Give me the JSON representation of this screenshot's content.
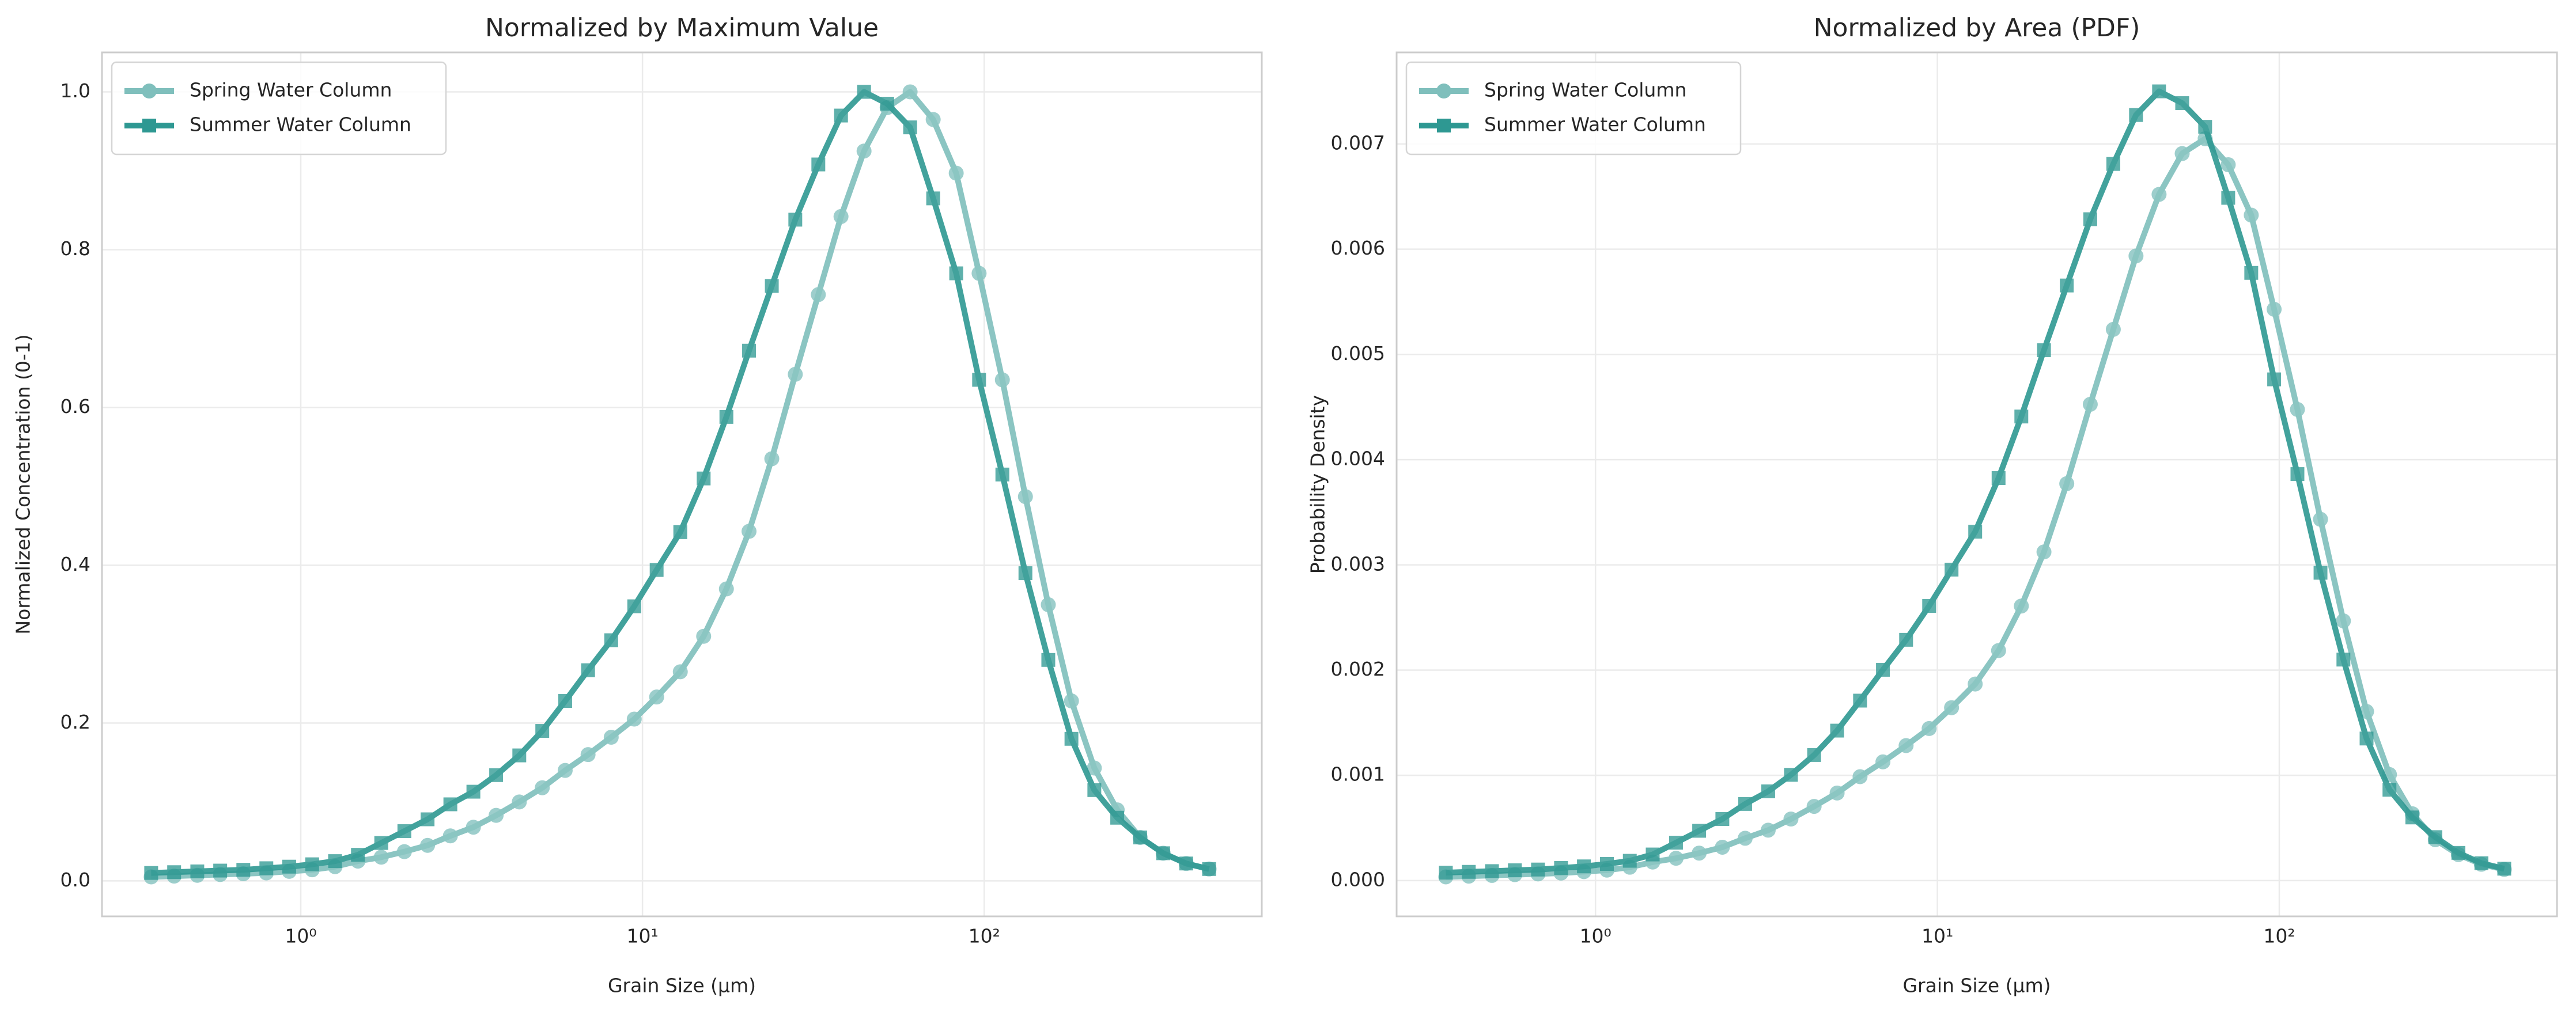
{
  "chart_data": [
    {
      "type": "line",
      "title": "Normalized by Maximum Value",
      "xlabel": "Grain Size (µm)",
      "ylabel": "Normalized Concentration (0-1)",
      "xscale": "log",
      "grid": true,
      "legend": "upper left",
      "x": [
        0.365,
        0.426,
        0.498,
        0.581,
        0.679,
        0.793,
        0.925,
        1.08,
        1.26,
        1.47,
        1.72,
        2.01,
        2.35,
        2.74,
        3.2,
        3.73,
        4.36,
        5.09,
        5.94,
        6.93,
        8.1,
        9.46,
        11,
        12.9,
        15.1,
        17.6,
        20.5,
        23.9,
        28,
        32.7,
        38.1,
        44.5,
        52,
        60.7,
        70.9,
        82.8,
        96.6,
        113,
        132,
        154,
        180,
        210,
        245,
        286,
        334,
        390,
        455
      ],
      "xlim": [
        0.262,
        649
      ],
      "xticks": [
        {
          "value": 1,
          "label": "10⁰"
        },
        {
          "value": 10,
          "label": "10¹"
        },
        {
          "value": 100,
          "label": "10²"
        }
      ],
      "ylim": [
        -0.045,
        1.05
      ],
      "yticks": [
        {
          "value": 0,
          "label": "0.0"
        },
        {
          "value": 0.2,
          "label": "0.2"
        },
        {
          "value": 0.4,
          "label": "0.4"
        },
        {
          "value": 0.6,
          "label": "0.6"
        },
        {
          "value": 0.8,
          "label": "0.8"
        },
        {
          "value": 1,
          "label": "1.0"
        }
      ],
      "series": [
        {
          "name": "Spring Water Column",
          "color": "#7fbfbc",
          "marker": "circle",
          "values": [
            0.005,
            0.006,
            0.007,
            0.008,
            0.009,
            0.01,
            0.012,
            0.014,
            0.018,
            0.025,
            0.03,
            0.037,
            0.045,
            0.057,
            0.068,
            0.083,
            0.1,
            0.118,
            0.14,
            0.16,
            0.182,
            0.205,
            0.233,
            0.265,
            0.31,
            0.37,
            0.443,
            0.535,
            0.642,
            0.743,
            0.842,
            0.925,
            0.98,
            1.0,
            0.965,
            0.897,
            0.77,
            0.635,
            0.487,
            0.35,
            0.228,
            0.143,
            0.09,
            0.055,
            0.035,
            0.022,
            0.015
          ]
        },
        {
          "name": "Summer Water Column",
          "color": "#2e9892",
          "marker": "square",
          "values": [
            0.01,
            0.011,
            0.012,
            0.013,
            0.014,
            0.016,
            0.018,
            0.021,
            0.025,
            0.033,
            0.048,
            0.063,
            0.078,
            0.097,
            0.113,
            0.134,
            0.159,
            0.19,
            0.228,
            0.267,
            0.305,
            0.348,
            0.394,
            0.442,
            0.51,
            0.588,
            0.672,
            0.754,
            0.838,
            0.908,
            0.97,
            1.0,
            0.985,
            0.955,
            0.865,
            0.77,
            0.635,
            0.515,
            0.39,
            0.28,
            0.18,
            0.115,
            0.08,
            0.055,
            0.035,
            0.022,
            0.015
          ]
        }
      ]
    },
    {
      "type": "line",
      "title": "Normalized by Area (PDF)",
      "xlabel": "Grain Size (µm)",
      "ylabel": "Probability Density",
      "xscale": "log",
      "grid": true,
      "legend": "upper left",
      "x": [
        0.365,
        0.426,
        0.498,
        0.581,
        0.679,
        0.793,
        0.925,
        1.08,
        1.26,
        1.47,
        1.72,
        2.01,
        2.35,
        2.74,
        3.2,
        3.73,
        4.36,
        5.09,
        5.94,
        6.93,
        8.1,
        9.46,
        11,
        12.9,
        15.1,
        17.6,
        20.5,
        23.9,
        28,
        32.7,
        38.1,
        44.5,
        52,
        60.7,
        70.9,
        82.8,
        96.6,
        113,
        132,
        154,
        180,
        210,
        245,
        286,
        334,
        390,
        455
      ],
      "xlim": [
        0.262,
        649
      ],
      "xticks": [
        {
          "value": 1,
          "label": "10⁰"
        },
        {
          "value": 10,
          "label": "10¹"
        },
        {
          "value": 100,
          "label": "10²"
        }
      ],
      "ylim": [
        -0.00034,
        0.00787
      ],
      "yticks": [
        {
          "value": 0,
          "label": "0.000"
        },
        {
          "value": 0.001,
          "label": "0.001"
        },
        {
          "value": 0.002,
          "label": "0.002"
        },
        {
          "value": 0.003,
          "label": "0.003"
        },
        {
          "value": 0.004,
          "label": "0.004"
        },
        {
          "value": 0.005,
          "label": "0.005"
        },
        {
          "value": 0.006,
          "label": "0.006"
        },
        {
          "value": 0.007,
          "label": "0.007"
        }
      ],
      "series": [
        {
          "name": "Spring Water Column",
          "color": "#7fbfbc",
          "marker": "circle",
          "values": [
            3.5e-05,
            4.2e-05,
            4.9e-05,
            5.6e-05,
            6.3e-05,
            7.1e-05,
            8.5e-05,
            9.9e-05,
            0.000127,
            0.000176,
            0.000212,
            0.000261,
            0.000317,
            0.000402,
            0.000479,
            0.000585,
            0.000705,
            0.000832,
            0.000987,
            0.001128,
            0.001283,
            0.001445,
            0.001643,
            0.001868,
            0.002186,
            0.002609,
            0.003123,
            0.003772,
            0.004526,
            0.005238,
            0.005936,
            0.006521,
            0.006909,
            0.00705,
            0.006803,
            0.006324,
            0.005429,
            0.004477,
            0.003433,
            0.002468,
            0.001607,
            0.001008,
            0.000635,
            0.000388,
            0.000247,
            0.000155,
            0.000106
          ]
        },
        {
          "name": "Summer Water Column",
          "color": "#2e9892",
          "marker": "square",
          "values": [
            7.5e-05,
            8.3e-05,
            9e-05,
            9.8e-05,
            0.000105,
            0.00012,
            0.000135,
            0.000158,
            0.000188,
            0.000248,
            0.00036,
            0.000473,
            0.000585,
            0.000728,
            0.000848,
            0.001005,
            0.001193,
            0.001425,
            0.00171,
            0.002003,
            0.002288,
            0.00261,
            0.002955,
            0.003315,
            0.003825,
            0.00441,
            0.00504,
            0.005655,
            0.006285,
            0.00681,
            0.007275,
            0.0075,
            0.007388,
            0.007163,
            0.006488,
            0.005775,
            0.004763,
            0.003863,
            0.002925,
            0.0021,
            0.00135,
            0.000863,
            0.0006,
            0.000413,
            0.000263,
            0.000165,
            0.000113
          ]
        }
      ]
    }
  ]
}
